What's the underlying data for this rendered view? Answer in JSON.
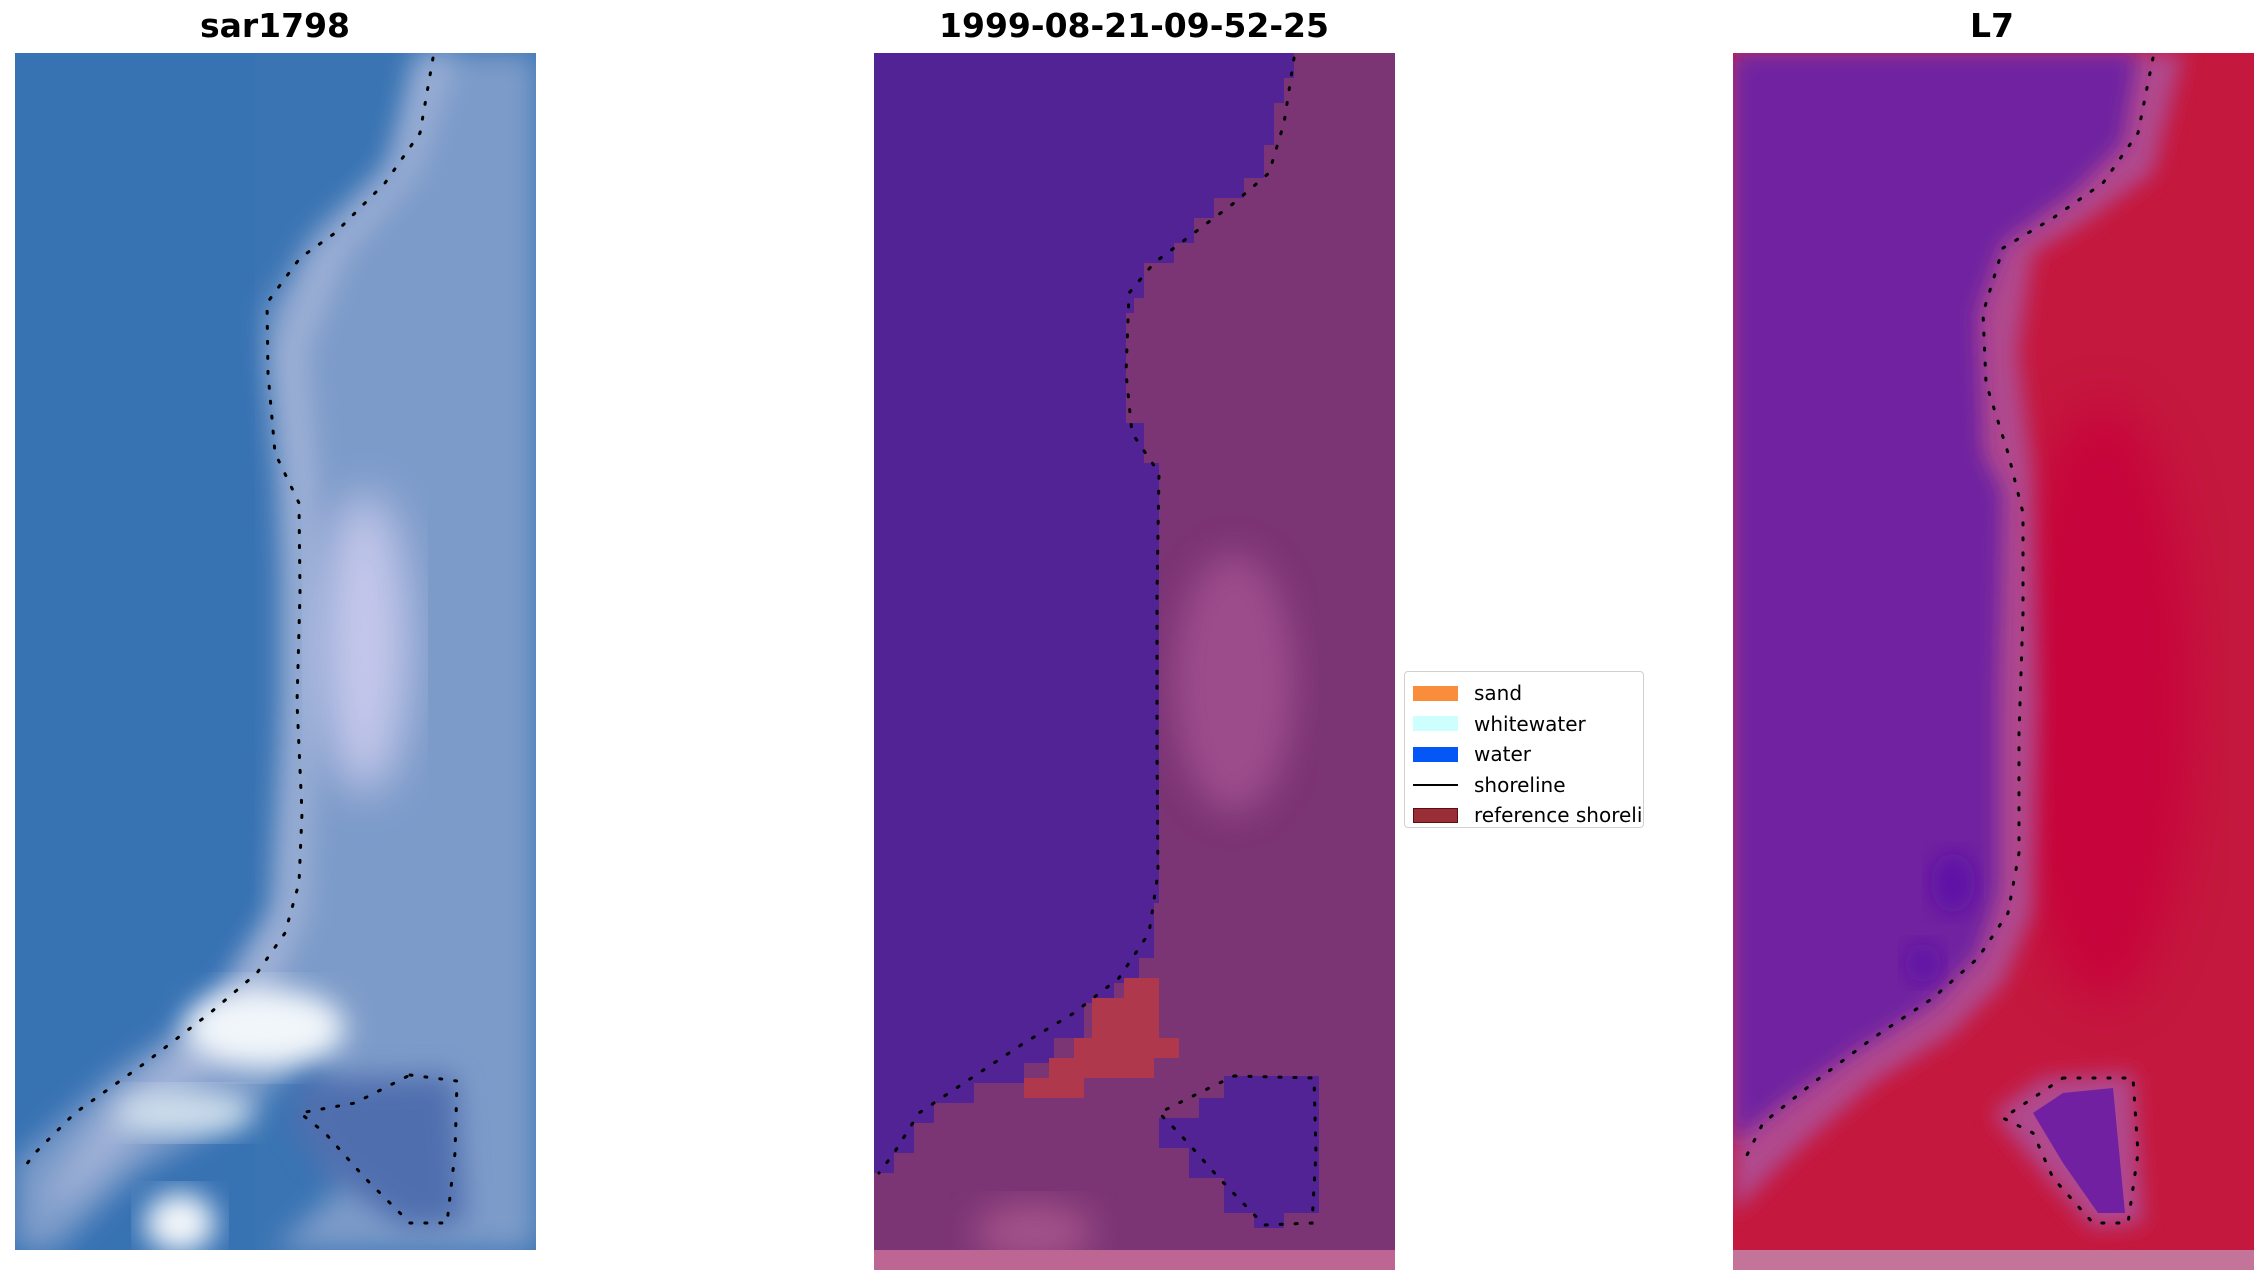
{
  "panels": [
    {
      "title": "sar1798"
    },
    {
      "title": "1999-08-21-09-52-25"
    },
    {
      "title": "L7"
    }
  ],
  "legend": {
    "items": [
      {
        "label": "sand",
        "color": "#f98d3c",
        "kind": "patch"
      },
      {
        "label": "whitewater",
        "color": "#ccfffe",
        "kind": "patch"
      },
      {
        "label": "water",
        "color": "#0457f6",
        "kind": "patch"
      },
      {
        "label": "shoreline",
        "color": "#000000",
        "kind": "line"
      },
      {
        "label": "reference shoreline buffer",
        "color": "#9a2e36",
        "kind": "patch"
      }
    ]
  },
  "colors": {
    "sar_water": "#3a74b3",
    "sar_beach": "#8ea3cf",
    "sar_foam": "#e9f0f6",
    "class_water": "#522394",
    "class_land": "#7b3474",
    "class_buffer": "#b0384c",
    "class_strip": "#bd6593",
    "index_water": "#7020a0",
    "index_land": "#c4183e",
    "index_edge": "#b0488e",
    "index_strip": "#c47399"
  }
}
